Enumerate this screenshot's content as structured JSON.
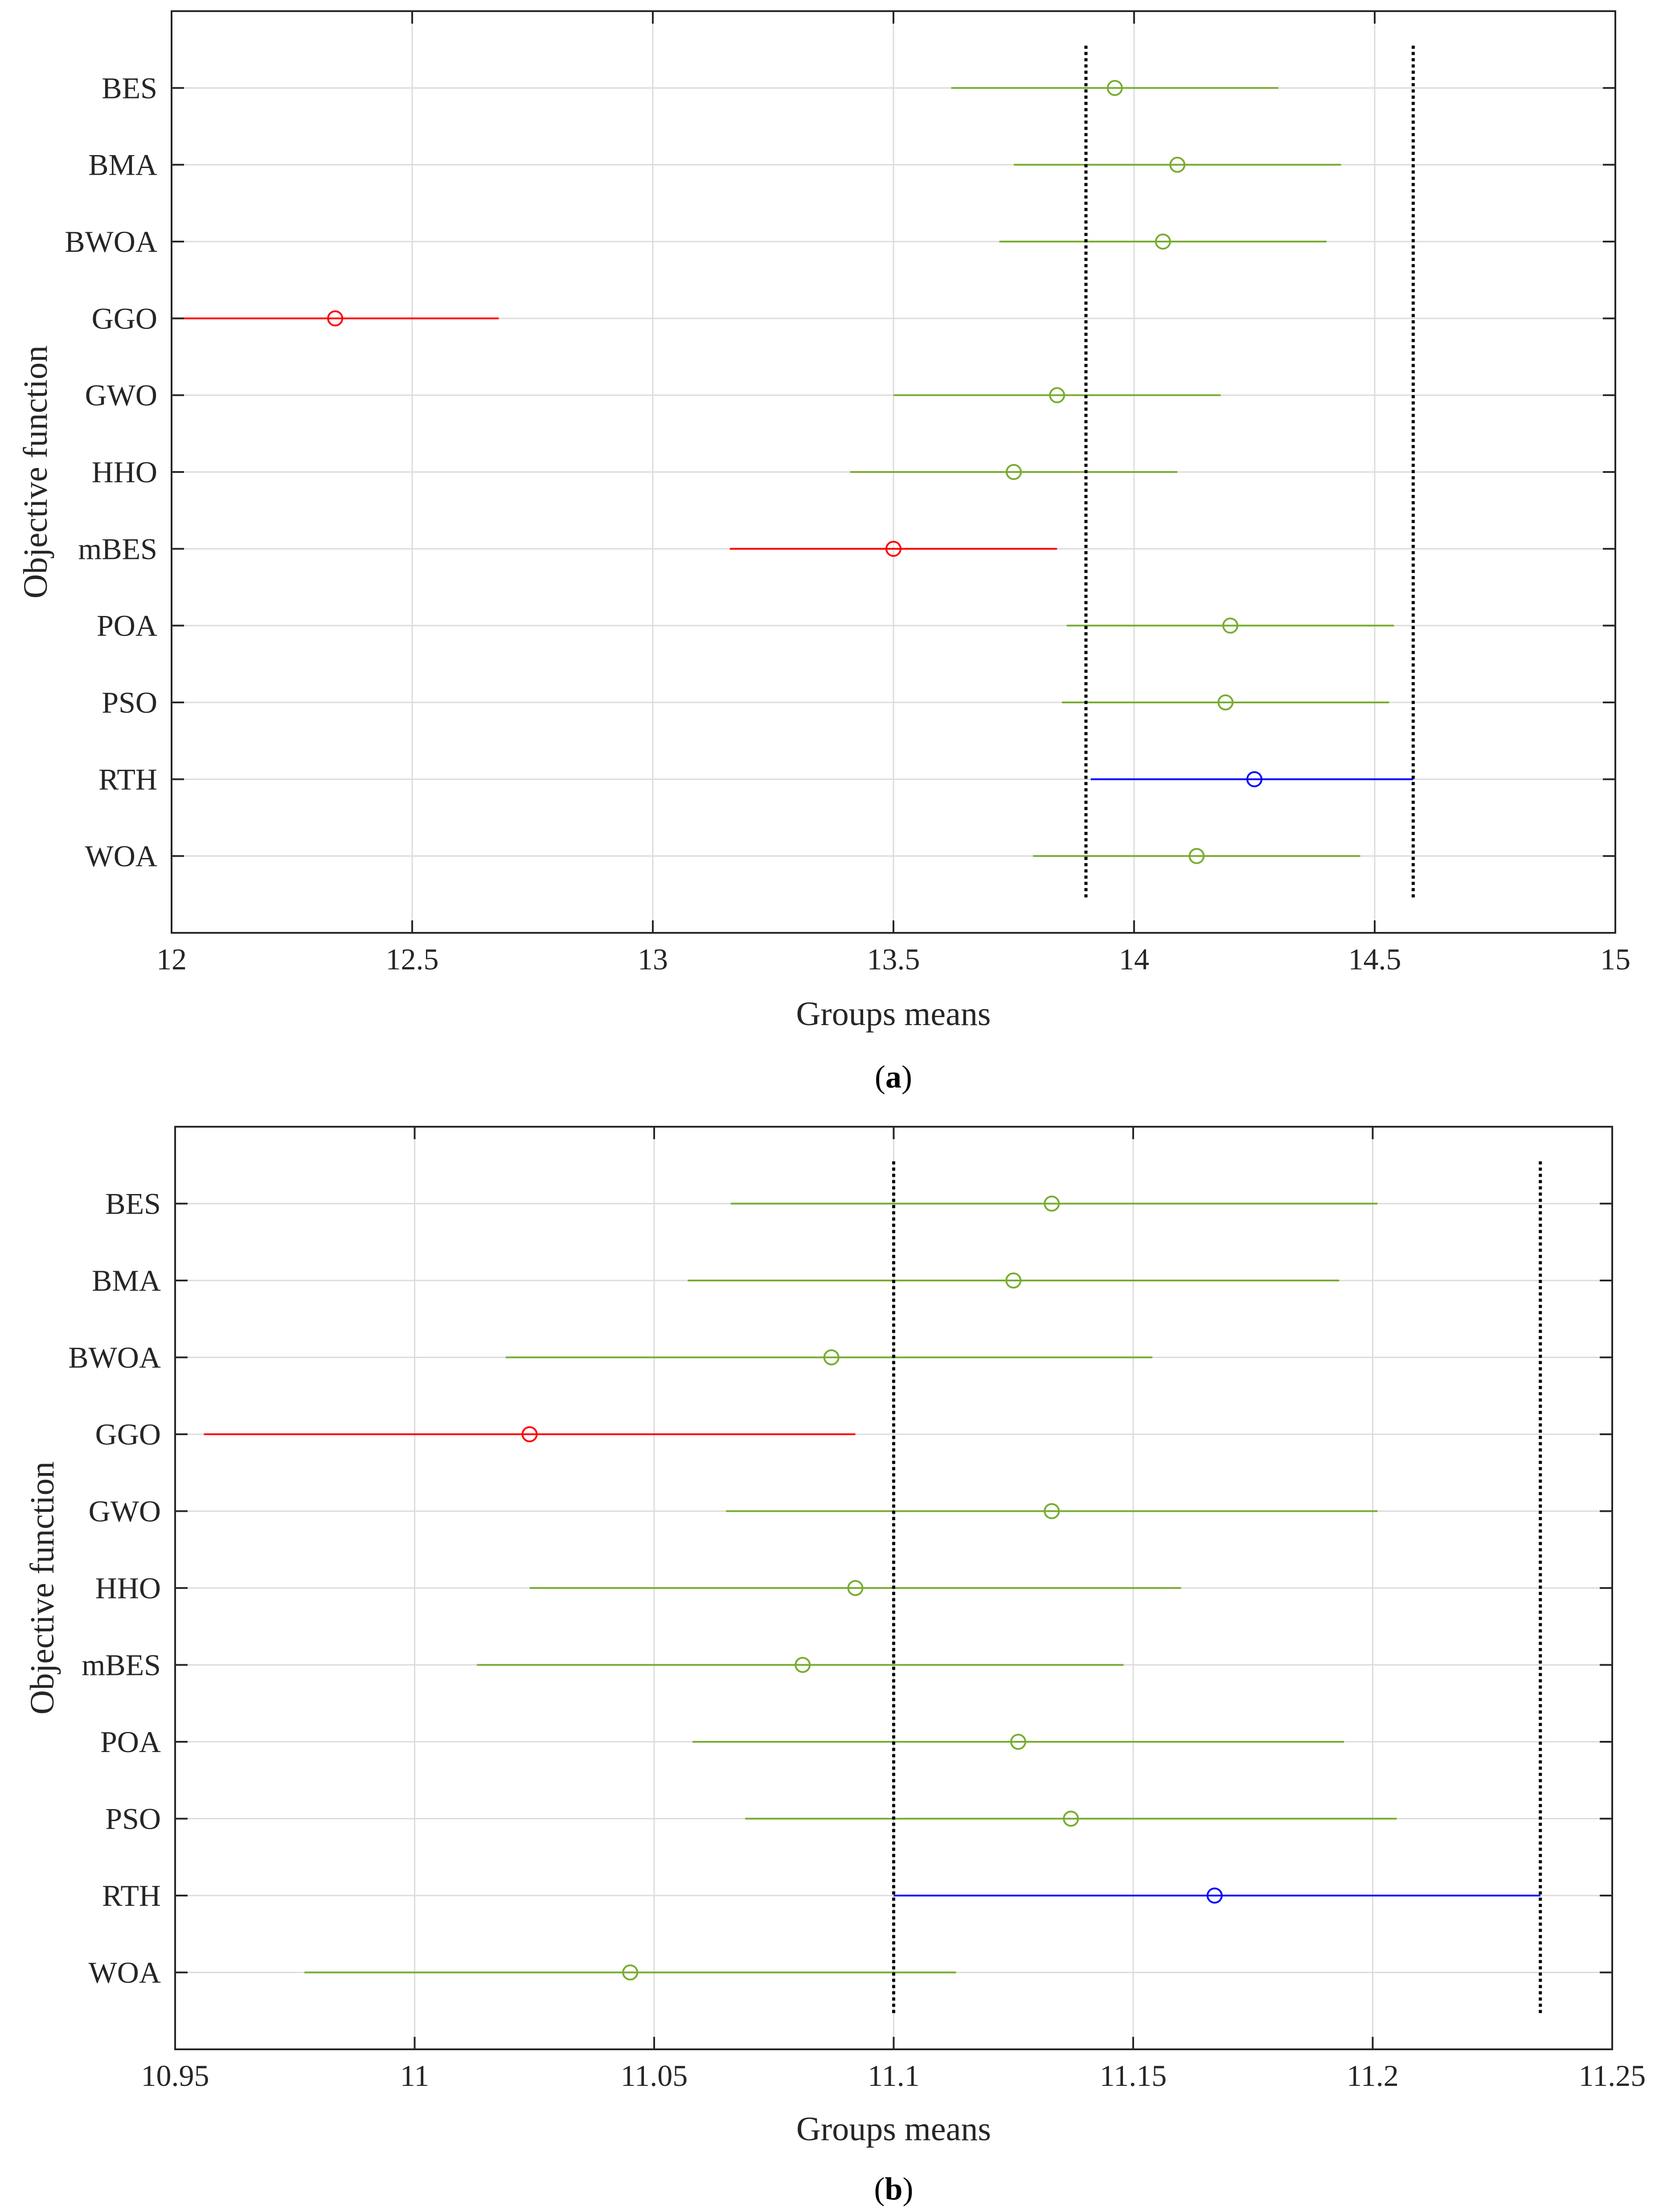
{
  "chart_data": [
    {
      "type": "multiple-comparison",
      "panel": "a",
      "caption_letter": "a",
      "xlabel": "Groups means",
      "ylabel": "Objective function",
      "xlim": [
        12,
        15
      ],
      "xticks": [
        12,
        12.5,
        13,
        13.5,
        14,
        14.5,
        15
      ],
      "xtick_labels": [
        "12",
        "12.5",
        "13",
        "13.5",
        "14",
        "14.5",
        "15"
      ],
      "reference_lines": [
        13.9,
        14.58
      ],
      "grid": true,
      "colors": {
        "significant": "#ff0000",
        "not_significant": "#77ac30",
        "reference": "#0000ff"
      },
      "groups": [
        {
          "name": "BES",
          "mean": 13.96,
          "low": 13.62,
          "high": 14.3,
          "status": "not_significant"
        },
        {
          "name": "BMA",
          "mean": 14.09,
          "low": 13.75,
          "high": 14.43,
          "status": "not_significant"
        },
        {
          "name": "BWOA",
          "mean": 14.06,
          "low": 13.72,
          "high": 14.4,
          "status": "not_significant"
        },
        {
          "name": "GGO",
          "mean": 12.34,
          "low": 12.0,
          "high": 12.68,
          "status": "significant"
        },
        {
          "name": "GWO",
          "mean": 13.84,
          "low": 13.5,
          "high": 14.18,
          "status": "not_significant"
        },
        {
          "name": "HHO",
          "mean": 13.75,
          "low": 13.41,
          "high": 14.09,
          "status": "not_significant"
        },
        {
          "name": "mBES",
          "mean": 13.5,
          "low": 13.16,
          "high": 13.84,
          "status": "significant"
        },
        {
          "name": "POA",
          "mean": 14.2,
          "low": 13.86,
          "high": 14.54,
          "status": "not_significant"
        },
        {
          "name": "PSO",
          "mean": 14.19,
          "low": 13.85,
          "high": 14.53,
          "status": "not_significant"
        },
        {
          "name": "RTH",
          "mean": 14.25,
          "low": 13.91,
          "high": 14.58,
          "status": "reference"
        },
        {
          "name": "WOA",
          "mean": 14.13,
          "low": 13.79,
          "high": 14.47,
          "status": "not_significant"
        }
      ]
    },
    {
      "type": "multiple-comparison",
      "panel": "b",
      "caption_letter": "b",
      "xlabel": "Groups means",
      "ylabel": "Objective function",
      "xlim": [
        10.95,
        11.25
      ],
      "xticks": [
        10.95,
        11,
        11.05,
        11.1,
        11.15,
        11.2,
        11.25
      ],
      "xtick_labels": [
        "10.95",
        "11",
        "11.05",
        "11.1",
        "11.15",
        "11.2",
        "11.25"
      ],
      "reference_lines": [
        11.1,
        11.235
      ],
      "grid": true,
      "colors": {
        "significant": "#ff0000",
        "not_significant": "#77ac30",
        "reference": "#0000ff"
      },
      "groups": [
        {
          "name": "BES",
          "mean": 11.133,
          "low": 11.066,
          "high": 11.201,
          "status": "not_significant"
        },
        {
          "name": "BMA",
          "mean": 11.125,
          "low": 11.057,
          "high": 11.193,
          "status": "not_significant"
        },
        {
          "name": "BWOA",
          "mean": 11.087,
          "low": 11.019,
          "high": 11.154,
          "status": "not_significant"
        },
        {
          "name": "GGO",
          "mean": 11.024,
          "low": 10.956,
          "high": 11.092,
          "status": "significant"
        },
        {
          "name": "GWO",
          "mean": 11.133,
          "low": 11.065,
          "high": 11.201,
          "status": "not_significant"
        },
        {
          "name": "HHO",
          "mean": 11.092,
          "low": 11.024,
          "high": 11.16,
          "status": "not_significant"
        },
        {
          "name": "mBES",
          "mean": 11.081,
          "low": 11.013,
          "high": 11.148,
          "status": "not_significant"
        },
        {
          "name": "POA",
          "mean": 11.126,
          "low": 11.058,
          "high": 11.194,
          "status": "not_significant"
        },
        {
          "name": "PSO",
          "mean": 11.137,
          "low": 11.069,
          "high": 11.205,
          "status": "not_significant"
        },
        {
          "name": "RTH",
          "mean": 11.167,
          "low": 11.1,
          "high": 11.235,
          "status": "reference"
        },
        {
          "name": "WOA",
          "mean": 11.045,
          "low": 10.977,
          "high": 11.113,
          "status": "not_significant"
        }
      ]
    }
  ]
}
